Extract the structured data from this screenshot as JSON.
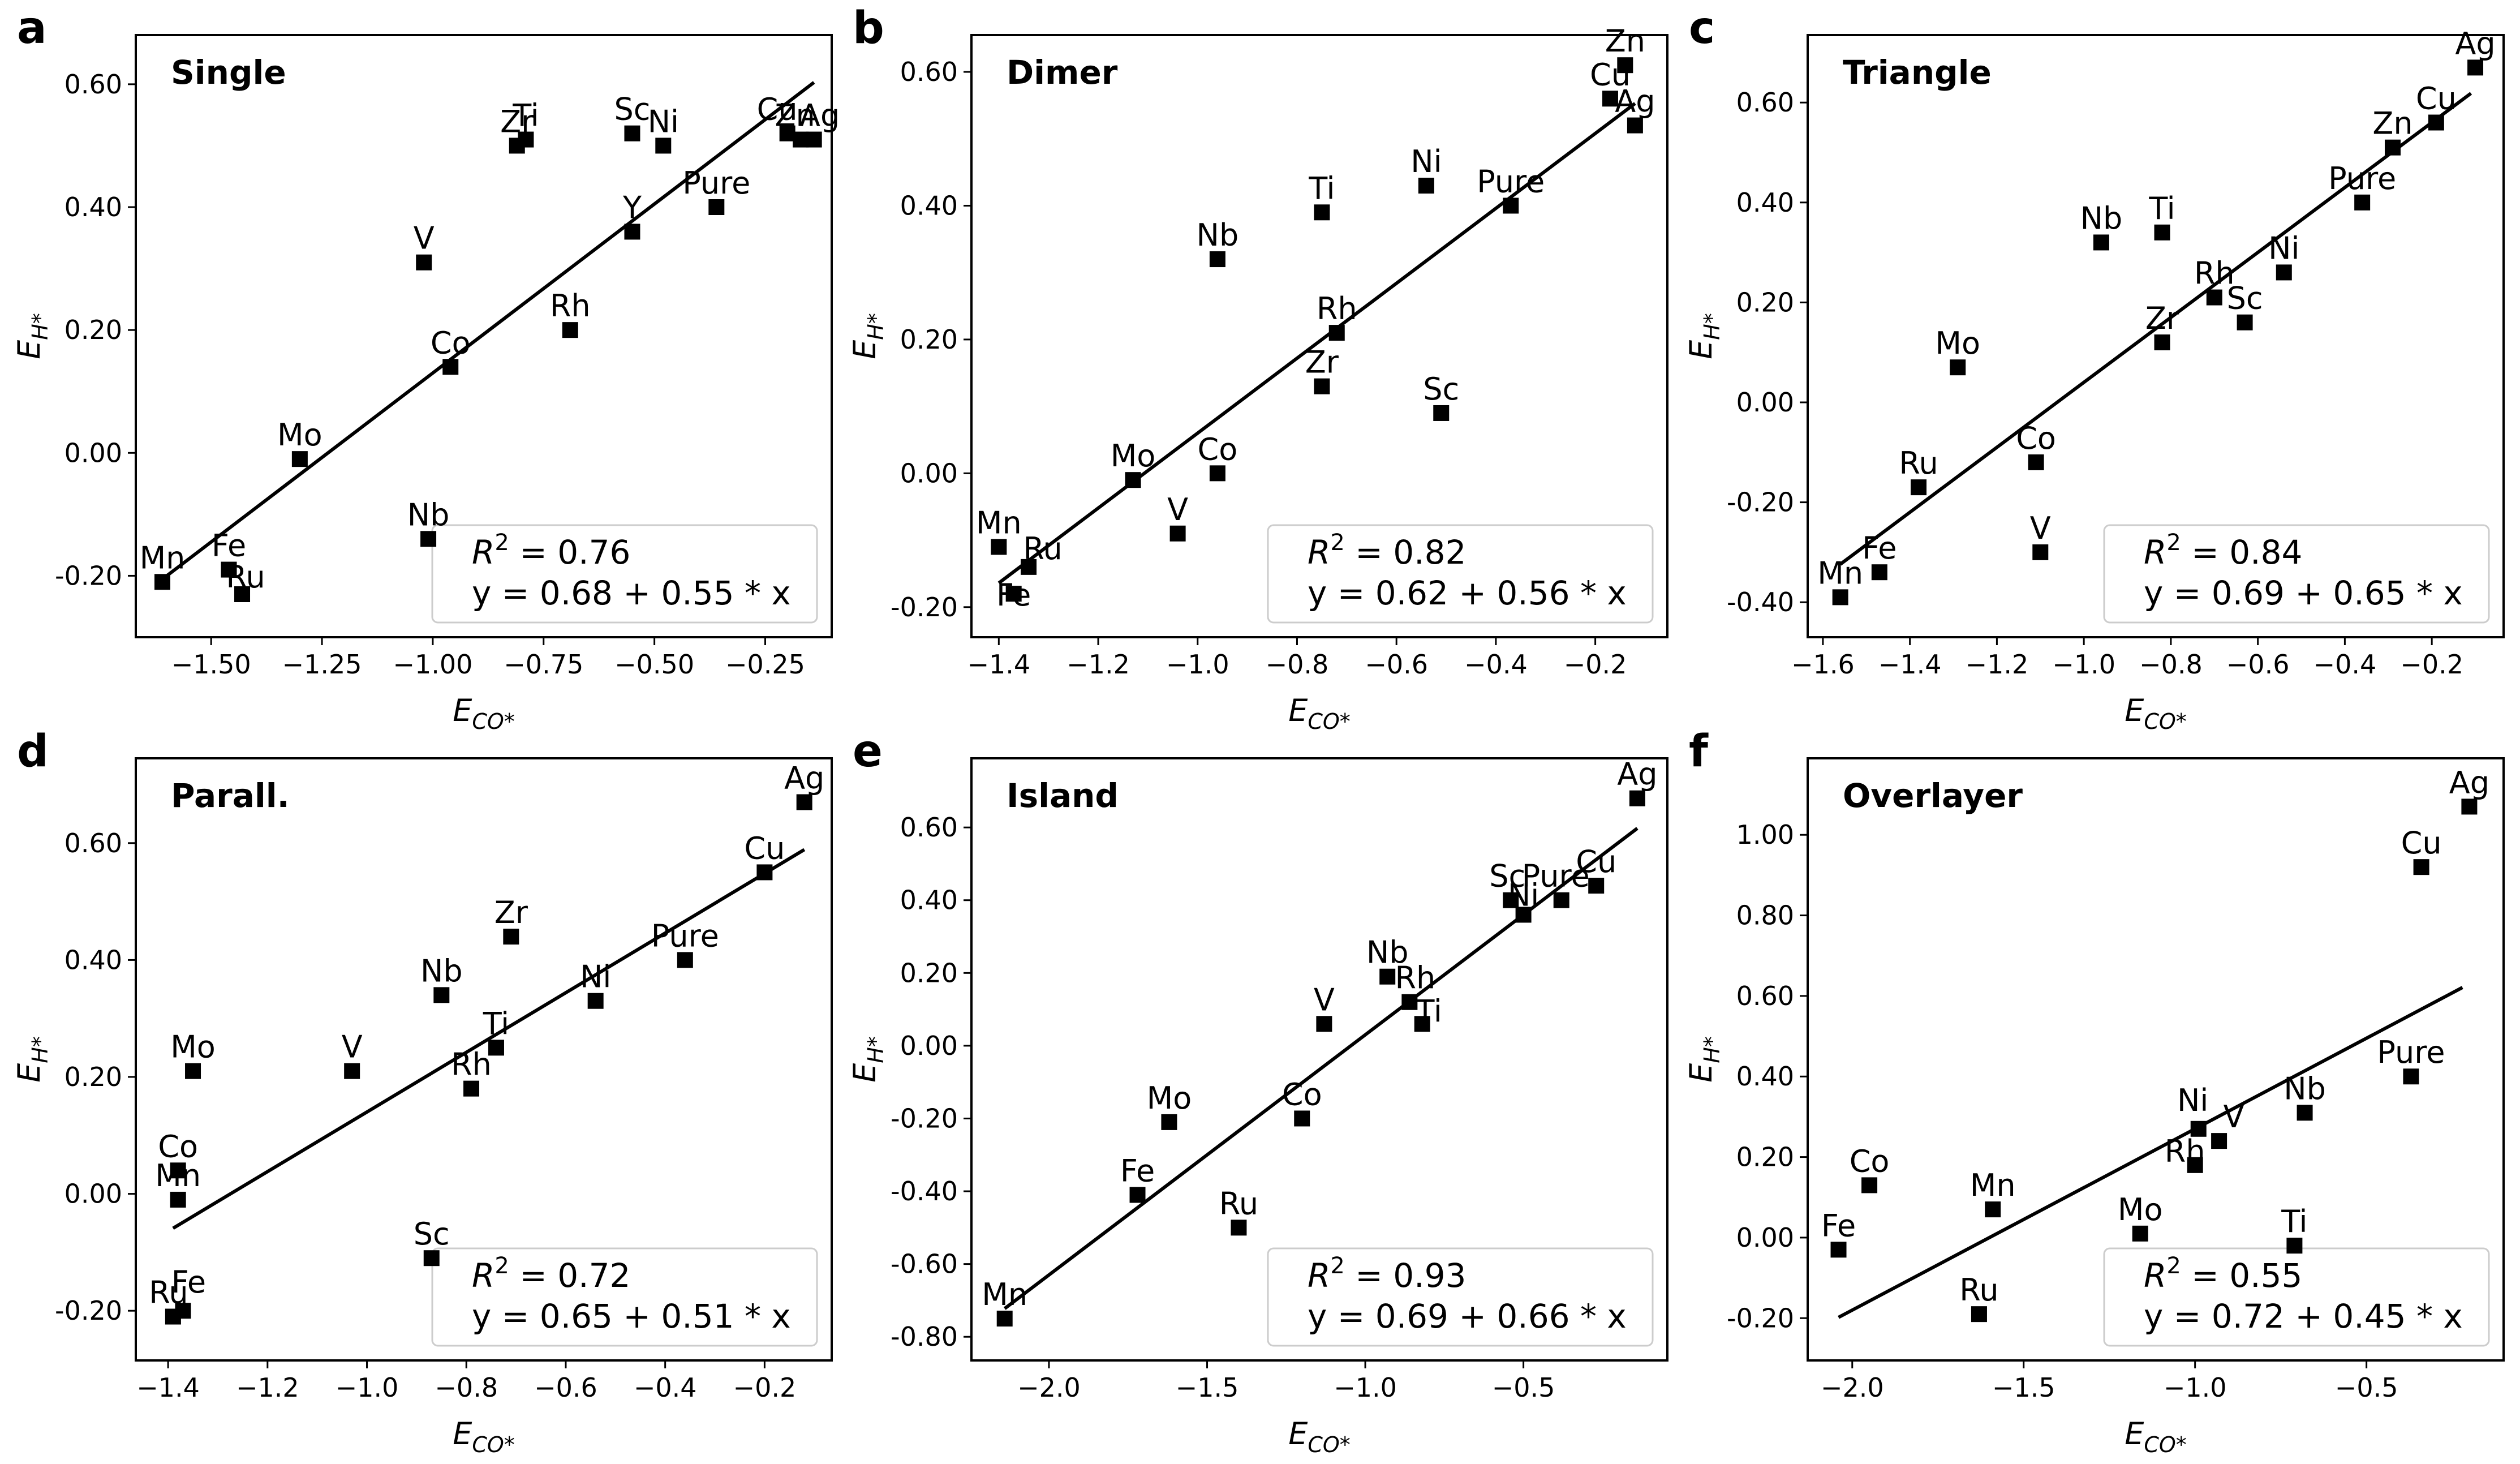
{
  "figure": {
    "id": "regression-panels"
  },
  "chart_data": [
    {
      "letter": "a",
      "title": "Single",
      "type": "scatter",
      "xlabel": "E",
      "xlabel_sub": "CO*",
      "ylabel": "E",
      "ylabel_sub": "H*",
      "xlim": [
        -1.67,
        -0.1
      ],
      "ylim": [
        -0.3,
        0.68
      ],
      "xticks": [
        -1.5,
        -1.25,
        -1.0,
        -0.75,
        -0.5,
        -0.25
      ],
      "xtick_labels": [
        "−1.50",
        "−1.25",
        "−1.00",
        "−0.75",
        "−0.50",
        "−0.25"
      ],
      "yticks": [
        -0.2,
        0.0,
        0.2,
        0.4,
        0.6
      ],
      "ytick_labels": [
        "-0.20",
        "0.00",
        "0.20",
        "0.40",
        "0.60"
      ],
      "points": [
        {
          "label": "Mn",
          "x": -1.61,
          "y": -0.21
        },
        {
          "label": "Fe",
          "x": -1.46,
          "y": -0.19
        },
        {
          "label": "Ru",
          "x": -1.43,
          "y": -0.23
        },
        {
          "label": "Mo",
          "x": -1.3,
          "y": -0.01
        },
        {
          "label": "Nb",
          "x": -1.01,
          "y": -0.14
        },
        {
          "label": "V",
          "x": -1.02,
          "y": 0.31
        },
        {
          "label": "Co",
          "x": -0.96,
          "y": 0.14
        },
        {
          "label": "Zr",
          "x": -0.81,
          "y": 0.5
        },
        {
          "label": "Ti",
          "x": -0.79,
          "y": 0.51
        },
        {
          "label": "Rh",
          "x": -0.69,
          "y": 0.2
        },
        {
          "label": "Sc",
          "x": -0.55,
          "y": 0.52
        },
        {
          "label": "Y",
          "x": -0.55,
          "y": 0.36
        },
        {
          "label": "Ni",
          "x": -0.48,
          "y": 0.5
        },
        {
          "label": "Pure",
          "x": -0.36,
          "y": 0.4
        },
        {
          "label": "Cu",
          "x": -0.2,
          "y": 0.52
        },
        {
          "label": "Zn",
          "x": -0.17,
          "y": 0.51
        },
        {
          "label": "Ag",
          "x": -0.14,
          "y": 0.51
        }
      ],
      "fit": {
        "x": [
          -1.62,
          -0.14
        ]
      },
      "legend": {
        "r2_label": "R",
        "r2_sup": "2",
        "r2_value": "= 0.76",
        "equation": "y = 0.68 + 0.55 * x",
        "position": "lower-right"
      }
    },
    {
      "letter": "b",
      "title": "Dimer",
      "type": "scatter",
      "xlabel": "E",
      "xlabel_sub": "CO*",
      "ylabel": "E",
      "ylabel_sub": "H*",
      "xlim": [
        -1.455,
        -0.055
      ],
      "ylim": [
        -0.245,
        0.655
      ],
      "xticks": [
        -1.4,
        -1.2,
        -1.0,
        -0.8,
        -0.6,
        -0.4,
        -0.2
      ],
      "xtick_labels": [
        "−1.4",
        "−1.2",
        "−1.0",
        "−0.8",
        "−0.6",
        "−0.4",
        "−0.2"
      ],
      "yticks": [
        -0.2,
        0.0,
        0.2,
        0.4,
        0.6
      ],
      "ytick_labels": [
        "-0.20",
        "0.00",
        "0.20",
        "0.40",
        "0.60"
      ],
      "points": [
        {
          "label": "Mn",
          "x": -1.4,
          "y": -0.11
        },
        {
          "label": "Ru",
          "x": -1.34,
          "y": -0.14
        },
        {
          "label": "Fe",
          "x": -1.37,
          "y": -0.18
        },
        {
          "label": "Mo",
          "x": -1.13,
          "y": -0.01
        },
        {
          "label": "V",
          "x": -1.04,
          "y": -0.09
        },
        {
          "label": "Co",
          "x": -0.96,
          "y": 0.0
        },
        {
          "label": "Nb",
          "x": -0.96,
          "y": 0.32
        },
        {
          "label": "Ti",
          "x": -0.75,
          "y": 0.39
        },
        {
          "label": "Zr",
          "x": -0.75,
          "y": 0.13
        },
        {
          "label": "Rh",
          "x": -0.72,
          "y": 0.21
        },
        {
          "label": "Sc",
          "x": -0.51,
          "y": 0.09
        },
        {
          "label": "Ni",
          "x": -0.54,
          "y": 0.43
        },
        {
          "label": "Pure",
          "x": -0.37,
          "y": 0.4
        },
        {
          "label": "Cu",
          "x": -0.17,
          "y": 0.56
        },
        {
          "label": "Zn",
          "x": -0.14,
          "y": 0.61
        },
        {
          "label": "Ag",
          "x": -0.12,
          "y": 0.52
        }
      ],
      "fit": {
        "x": [
          -1.4,
          -0.12
        ]
      },
      "legend": {
        "r2_label": "R",
        "r2_sup": "2",
        "r2_value": "= 0.82",
        "equation": "y = 0.62 + 0.56 * x",
        "position": "lower-right"
      }
    },
    {
      "letter": "c",
      "title": "Triangle",
      "type": "scatter",
      "xlabel": "E",
      "xlabel_sub": "CO*",
      "ylabel": "E",
      "ylabel_sub": "H*",
      "xlim": [
        -1.635,
        -0.035
      ],
      "ylim": [
        -0.47,
        0.735
      ],
      "xticks": [
        -1.6,
        -1.4,
        -1.2,
        -1.0,
        -0.8,
        -0.6,
        -0.4,
        -0.2
      ],
      "xtick_labels": [
        "−1.6",
        "−1.4",
        "−1.2",
        "−1.0",
        "−0.8",
        "−0.6",
        "−0.4",
        "−0.2"
      ],
      "yticks": [
        -0.4,
        -0.2,
        0.0,
        0.2,
        0.4,
        0.6
      ],
      "ytick_labels": [
        "-0.40",
        "-0.20",
        "0.00",
        "0.20",
        "0.40",
        "0.60"
      ],
      "points": [
        {
          "label": "Mn",
          "x": -1.56,
          "y": -0.39
        },
        {
          "label": "Fe",
          "x": -1.47,
          "y": -0.34
        },
        {
          "label": "Ru",
          "x": -1.38,
          "y": -0.17
        },
        {
          "label": "Mo",
          "x": -1.29,
          "y": 0.07
        },
        {
          "label": "Co",
          "x": -1.11,
          "y": -0.12
        },
        {
          "label": "V",
          "x": -1.1,
          "y": -0.3
        },
        {
          "label": "Nb",
          "x": -0.96,
          "y": 0.32
        },
        {
          "label": "Ti",
          "x": -0.82,
          "y": 0.34
        },
        {
          "label": "Zr",
          "x": -0.82,
          "y": 0.12
        },
        {
          "label": "Rh",
          "x": -0.7,
          "y": 0.21
        },
        {
          "label": "Sc",
          "x": -0.63,
          "y": 0.16
        },
        {
          "label": "Ni",
          "x": -0.54,
          "y": 0.26
        },
        {
          "label": "Pure",
          "x": -0.36,
          "y": 0.4
        },
        {
          "label": "Zn",
          "x": -0.29,
          "y": 0.51
        },
        {
          "label": "Cu",
          "x": -0.19,
          "y": 0.56
        },
        {
          "label": "Ag",
          "x": -0.1,
          "y": 0.67
        }
      ],
      "fit": {
        "x": [
          -1.56,
          -0.11
        ]
      },
      "legend": {
        "r2_label": "R",
        "r2_sup": "2",
        "r2_value": "= 0.84",
        "equation": "y = 0.69 + 0.65 * x",
        "position": "lower-right"
      }
    },
    {
      "letter": "d",
      "title": "Parall.",
      "type": "scatter",
      "xlabel": "E",
      "xlabel_sub": "CO*",
      "ylabel": "E",
      "ylabel_sub": "H*",
      "xlim": [
        -1.465,
        -0.065
      ],
      "ylim": [
        -0.285,
        0.745
      ],
      "xticks": [
        -1.4,
        -1.2,
        -1.0,
        -0.8,
        -0.6,
        -0.4,
        -0.2
      ],
      "xtick_labels": [
        "−1.4",
        "−1.2",
        "−1.0",
        "−0.8",
        "−0.6",
        "−0.4",
        "−0.2"
      ],
      "yticks": [
        -0.2,
        0.0,
        0.2,
        0.4,
        0.6
      ],
      "ytick_labels": [
        "-0.20",
        "0.00",
        "0.20",
        "0.40",
        "0.60"
      ],
      "points": [
        {
          "label": "Ru",
          "x": -1.39,
          "y": -0.21
        },
        {
          "label": "Fe",
          "x": -1.37,
          "y": -0.2
        },
        {
          "label": "Mn",
          "x": -1.38,
          "y": -0.01
        },
        {
          "label": "Co",
          "x": -1.38,
          "y": 0.04
        },
        {
          "label": "Mo",
          "x": -1.35,
          "y": 0.21
        },
        {
          "label": "V",
          "x": -1.03,
          "y": 0.21
        },
        {
          "label": "Sc",
          "x": -0.87,
          "y": -0.11
        },
        {
          "label": "Nb",
          "x": -0.85,
          "y": 0.34
        },
        {
          "label": "Rh",
          "x": -0.79,
          "y": 0.18
        },
        {
          "label": "Ti",
          "x": -0.74,
          "y": 0.25
        },
        {
          "label": "Zr",
          "x": -0.71,
          "y": 0.44
        },
        {
          "label": "Ni",
          "x": -0.54,
          "y": 0.33
        },
        {
          "label": "Pure",
          "x": -0.36,
          "y": 0.4
        },
        {
          "label": "Cu",
          "x": -0.2,
          "y": 0.55
        },
        {
          "label": "Ag",
          "x": -0.12,
          "y": 0.67
        }
      ],
      "fit": {
        "x": [
          -1.39,
          -0.12
        ]
      },
      "legend": {
        "r2_label": "R",
        "r2_sup": "2",
        "r2_value": "= 0.72",
        "equation": "y = 0.65 + 0.51 * x",
        "position": "lower-right"
      }
    },
    {
      "letter": "e",
      "title": "Island",
      "type": "scatter",
      "xlabel": "E",
      "xlabel_sub": "CO*",
      "ylabel": "E",
      "ylabel_sub": "H*",
      "xlim": [
        -2.245,
        -0.045
      ],
      "ylim": [
        -0.865,
        0.79
      ],
      "xticks": [
        -2.0,
        -1.5,
        -1.0,
        -0.5
      ],
      "xtick_labels": [
        "−2.0",
        "−1.5",
        "−1.0",
        "−0.5"
      ],
      "yticks": [
        -0.8,
        -0.6,
        -0.4,
        -0.2,
        0.0,
        0.2,
        0.4,
        0.6
      ],
      "ytick_labels": [
        "-0.80",
        "-0.60",
        "-0.40",
        "-0.20",
        "0.00",
        "0.20",
        "0.40",
        "0.60"
      ],
      "points": [
        {
          "label": "Mn",
          "x": -2.14,
          "y": -0.75
        },
        {
          "label": "Fe",
          "x": -1.72,
          "y": -0.41
        },
        {
          "label": "Mo",
          "x": -1.62,
          "y": -0.21
        },
        {
          "label": "Ru",
          "x": -1.4,
          "y": -0.5
        },
        {
          "label": "Co",
          "x": -1.2,
          "y": -0.2
        },
        {
          "label": "V",
          "x": -1.13,
          "y": 0.06
        },
        {
          "label": "Nb",
          "x": -0.93,
          "y": 0.19
        },
        {
          "label": "Rh",
          "x": -0.86,
          "y": 0.12
        },
        {
          "label": "Ti",
          "x": -0.82,
          "y": 0.06
        },
        {
          "label": "Sc",
          "x": -0.54,
          "y": 0.4
        },
        {
          "label": "Ni",
          "x": -0.5,
          "y": 0.36
        },
        {
          "label": "Pure",
          "x": -0.38,
          "y": 0.4
        },
        {
          "label": "Cu",
          "x": -0.27,
          "y": 0.44
        },
        {
          "label": "Ag",
          "x": -0.14,
          "y": 0.68
        }
      ],
      "fit": {
        "x": [
          -2.14,
          -0.14
        ]
      },
      "legend": {
        "r2_label": "R",
        "r2_sup": "2",
        "r2_value": "= 0.93",
        "equation": "y = 0.69 + 0.66 * x",
        "position": "lower-right"
      }
    },
    {
      "letter": "f",
      "title": "Overlayer",
      "type": "scatter",
      "xlabel": "E",
      "xlabel_sub": "CO*",
      "ylabel": "E",
      "ylabel_sub": "H*",
      "xlim": [
        -2.13,
        -0.1
      ],
      "ylim": [
        -0.305,
        1.19
      ],
      "xticks": [
        -2.0,
        -1.5,
        -1.0,
        -0.5
      ],
      "xtick_labels": [
        "−2.0",
        "−1.5",
        "−1.0",
        "−0.5"
      ],
      "yticks": [
        -0.2,
        0.0,
        0.2,
        0.4,
        0.6,
        0.8,
        1.0
      ],
      "ytick_labels": [
        "-0.20",
        "0.00",
        "0.20",
        "0.40",
        "0.60",
        "0.80",
        "1.00"
      ],
      "points": [
        {
          "label": "Fe",
          "x": -2.04,
          "y": -0.03
        },
        {
          "label": "Co",
          "x": -1.95,
          "y": 0.13
        },
        {
          "label": "Ru",
          "x": -1.63,
          "y": -0.19
        },
        {
          "label": "Mn",
          "x": -1.59,
          "y": 0.07
        },
        {
          "label": "Mo",
          "x": -1.16,
          "y": 0.01
        },
        {
          "label": "Rh",
          "x": -1.0,
          "y": 0.18
        },
        {
          "label": "Ni",
          "x": -0.99,
          "y": 0.27
        },
        {
          "label": "V",
          "x": -0.93,
          "y": 0.24
        },
        {
          "label": "Ti",
          "x": -0.71,
          "y": -0.02
        },
        {
          "label": "Nb",
          "x": -0.68,
          "y": 0.31
        },
        {
          "label": "Pure",
          "x": -0.37,
          "y": 0.4
        },
        {
          "label": "Cu",
          "x": -0.34,
          "y": 0.92
        },
        {
          "label": "Ag",
          "x": -0.2,
          "y": 1.07
        }
      ],
      "fit": {
        "x": [
          -2.04,
          -0.22
        ]
      },
      "legend": {
        "r2_label": "R",
        "r2_sup": "2",
        "r2_value": "= 0.55",
        "equation": "y = 0.72 + 0.45 * x",
        "position": "lower-right"
      }
    }
  ]
}
